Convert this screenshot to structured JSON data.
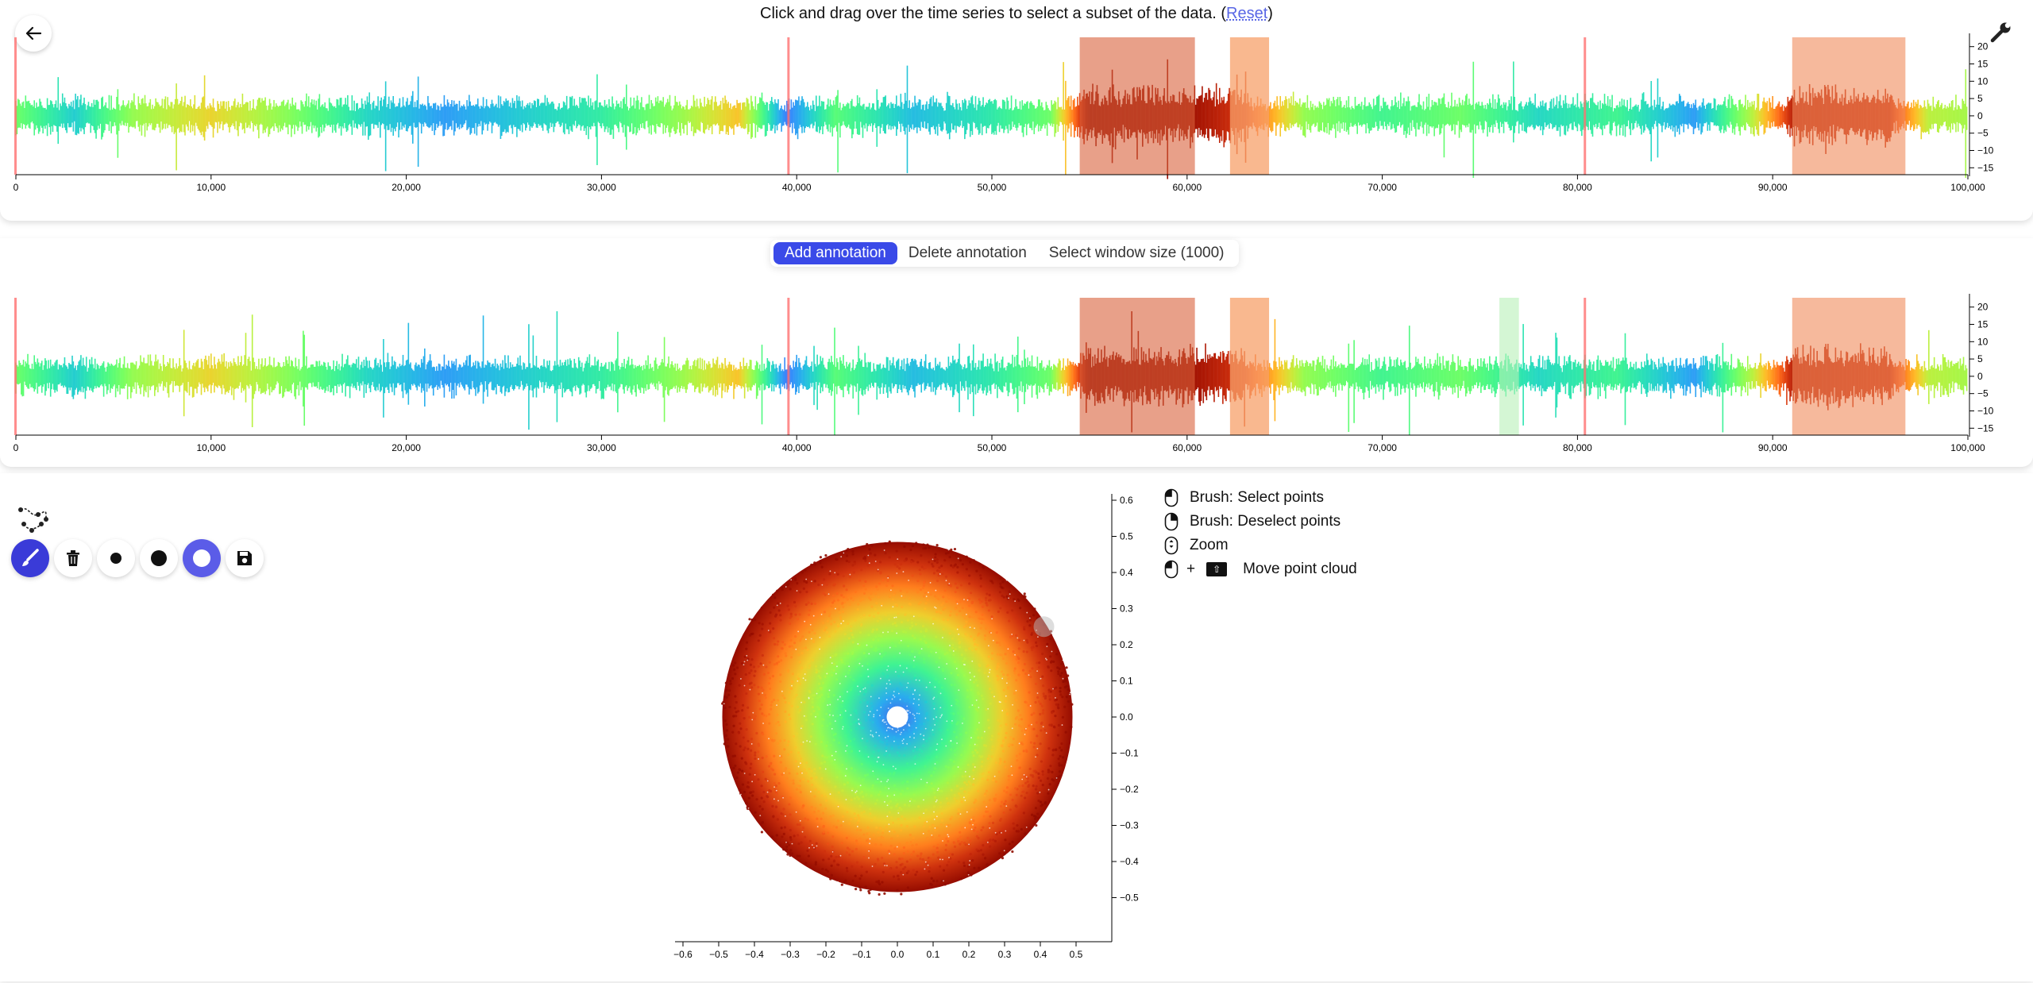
{
  "header": {
    "instruction": "Click and drag over the time series to select a subset of the data. (",
    "reset_link": "Reset",
    "instruction_end": ")"
  },
  "icons": {
    "back": "arrow-left-icon",
    "settings": "wrench-icon",
    "graph": "graph-icon",
    "brush": "brush-icon",
    "trash": "trash-icon",
    "point_small": "dot-small-icon",
    "point_large": "dot-large-icon",
    "ring": "ring-icon",
    "save": "save-icon"
  },
  "annotation_controls": {
    "add": "Add annotation",
    "delete": "Delete annotation",
    "window": "Select window size (1000)"
  },
  "legend": [
    {
      "icon": "mouse-left-icon",
      "label": "Brush: Select points"
    },
    {
      "icon": "mouse-right-icon",
      "label": "Brush: Deselect points"
    },
    {
      "icon": "mouse-wheel-icon",
      "label": "Zoom"
    },
    {
      "icon": "mouse-left-icon",
      "plus": "+",
      "key": "shift-key-icon",
      "label": "Move point cloud"
    }
  ],
  "colors": {
    "accent": "#3a4ae8",
    "annotation_dark": "#d9603b",
    "annotation_light": "#f7a06a",
    "marker_line": "#ff7070",
    "window_selection": "#c8f5c8"
  },
  "chart_data": [
    {
      "type": "line",
      "name": "top_timeseries",
      "x_ticks": [
        "0",
        "10,000",
        "20,000",
        "30,000",
        "40,000",
        "50,000",
        "60,000",
        "70,000",
        "80,000",
        "90,000",
        "100,000"
      ],
      "y_ticks": [
        "20",
        "15",
        "10",
        "5",
        "0",
        "−5",
        "−10",
        "−15"
      ],
      "xlim": [
        0,
        100000
      ],
      "ylim": [
        -17,
        22
      ],
      "annotations": [
        [
          54500,
          60400
        ],
        [
          62200,
          64200
        ],
        [
          91000,
          96800
        ]
      ],
      "markers": [
        0,
        39600,
        80400
      ]
    },
    {
      "type": "line",
      "name": "bottom_timeseries",
      "x_ticks": [
        "0",
        "10,000",
        "20,000",
        "30,000",
        "40,000",
        "50,000",
        "60,000",
        "70,000",
        "80,000",
        "90,000",
        "100,000"
      ],
      "y_ticks": [
        "20",
        "15",
        "10",
        "5",
        "0",
        "−5",
        "−10",
        "−15"
      ],
      "xlim": [
        0,
        100000
      ],
      "ylim": [
        -17,
        22
      ],
      "annotations": [
        [
          54500,
          60400
        ],
        [
          62200,
          64200
        ],
        [
          91000,
          96800
        ]
      ],
      "markers": [
        0,
        39600,
        80400
      ],
      "window": [
        76000,
        77000
      ]
    },
    {
      "type": "scatter",
      "name": "point_cloud",
      "shape": "ring",
      "x_ticks": [
        "−0.6",
        "−0.5",
        "−0.4",
        "−0.3",
        "−0.2",
        "−0.1",
        "0.0",
        "0.1",
        "0.2",
        "0.3",
        "0.4",
        "0.5"
      ],
      "y_ticks": [
        "0.6",
        "0.5",
        "0.4",
        "0.3",
        "0.2",
        "0.1",
        "0.0",
        "−0.1",
        "−0.2",
        "−0.3",
        "−0.4",
        "−0.5"
      ],
      "xlim": [
        -0.6,
        0.6
      ],
      "ylim": [
        -0.6,
        0.6
      ],
      "inner_radius": 0.03,
      "outer_radius": 0.49
    }
  ]
}
